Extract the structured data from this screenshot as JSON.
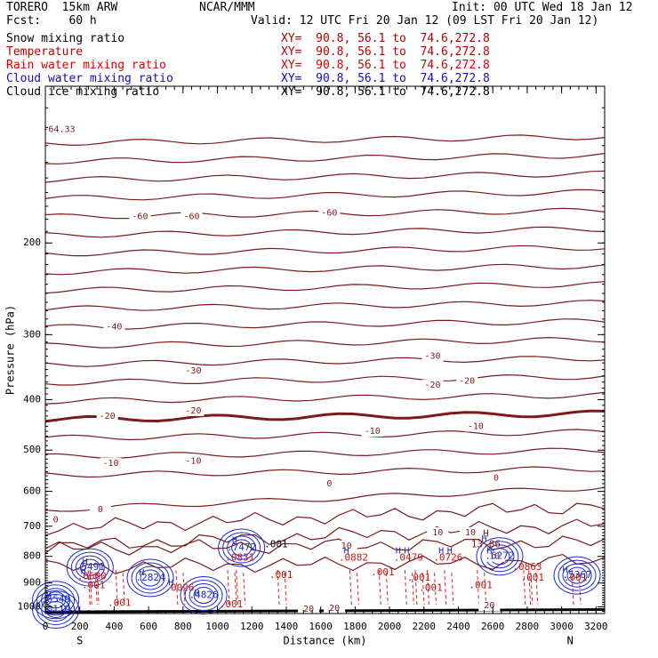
{
  "header": {
    "model": "TORERO  15km ARW",
    "center": "NCAR/MMM",
    "init": "Init: 00 UTC Wed 18 Jan 12",
    "fcst": "Fcst:    60 h",
    "valid": "Valid: 12 UTC Fri 20 Jan 12 (09 LST Fri 20 Jan 12)"
  },
  "legend": [
    {
      "name": "Snow mixing ratio",
      "xy": "XY=  90.8, 56.1 to  74.6,272.8",
      "color": "#000000",
      "xy_color": "#b00000"
    },
    {
      "name": "Temperature",
      "xy": "XY=  90.8, 56.1 to  74.6,272.8",
      "color": "#c00000",
      "xy_color": "#c00000"
    },
    {
      "name": "Rain water mixing ratio",
      "xy": "XY=  90.8, 56.1 to  74.6,272.8",
      "color": "#e00000",
      "xy_color": "#e00000"
    },
    {
      "name": "Cloud water mixing ratio",
      "xy": "XY=  90.8, 56.1 to  74.6,272.8",
      "color": "#1010c0",
      "xy_color": "#1010c0"
    },
    {
      "name": "Cloud ice mixing ratio",
      "xy": "XY=  90.8, 56.1 to  74.6,272.8",
      "color": "#000000",
      "xy_color": "#000000"
    }
  ],
  "chart_data": {
    "type": "line",
    "title": "",
    "xlabel": "Distance (km)",
    "ylabel": "Pressure (hPa)",
    "xlim": [
      0,
      3250
    ],
    "ylim": [
      1030,
      100
    ],
    "y_scale": "log",
    "x_ticks": [
      0,
      200,
      400,
      600,
      800,
      1000,
      1200,
      1400,
      1600,
      1800,
      2000,
      2200,
      2400,
      2600,
      2800,
      3000,
      3200
    ],
    "y_ticks": [
      200,
      300,
      400,
      500,
      600,
      700,
      800,
      900,
      1000
    ],
    "x_end_labels": {
      "left": "S",
      "right": "N"
    },
    "temperature_isotherms": [
      {
        "label": "-64.33",
        "x": [
          80
        ],
        "p": [
          121
        ]
      },
      {
        "label": "-60",
        "x": [
          550,
          850,
          1650
        ],
        "p": [
          178,
          178,
          175
        ]
      },
      {
        "label": "-40",
        "x": [
          400
        ],
        "p": [
          290
        ]
      },
      {
        "label": "-30",
        "x": [
          860,
          2250
        ],
        "p": [
          352,
          330
        ]
      },
      {
        "label": "-20",
        "x": [
          360,
          860,
          2250,
          2450
        ],
        "p": [
          430,
          420,
          375,
          368
        ]
      },
      {
        "label": "-10",
        "x": [
          380,
          860,
          1900,
          2500
        ],
        "p": [
          530,
          525,
          460,
          450
        ]
      },
      {
        "label": "0",
        "x": [
          60,
          320,
          1650,
          2620
        ],
        "p": [
          680,
          650,
          580,
          565
        ]
      },
      {
        "label": "10",
        "x": [
          1750,
          2280,
          2470,
          2610
        ],
        "p": [
          764,
          720,
          720,
          800
        ]
      },
      {
        "label": "20",
        "x": [
          1530,
          1680,
          2580
        ],
        "p": [
          1010,
          1005,
          995
        ]
      }
    ],
    "snow_maxima": [
      {
        "label": "13.86",
        "x": 2560,
        "p": 760
      }
    ],
    "rain_labels": [
      {
        "label": ".001",
        "x": 280,
        "p": 910
      },
      {
        "label": ".001",
        "x": 430,
        "p": 985
      },
      {
        "label": ".0026",
        "x": 780,
        "p": 920
      },
      {
        "label": ".001",
        "x": 1080,
        "p": 990
      },
      {
        "label": ".001",
        "x": 1370,
        "p": 870
      },
      {
        "label": ".001",
        "x": 1960,
        "p": 860
      },
      {
        "label": ".001",
        "x": 2170,
        "p": 880
      },
      {
        "label": ".001",
        "x": 2240,
        "p": 920
      },
      {
        "label": ".001",
        "x": 2530,
        "p": 910
      },
      {
        "label": ".001",
        "x": 2830,
        "p": 880
      },
      {
        "label": ".001",
        "x": 3080,
        "p": 880
      },
      {
        "label": ".0680",
        "x": 270,
        "p": 875
      },
      {
        "label": ".0831",
        "x": 1130,
        "p": 805
      },
      {
        "label": ".0882",
        "x": 1790,
        "p": 805
      },
      {
        "label": ".0479",
        "x": 2110,
        "p": 805
      },
      {
        "label": ".0726",
        "x": 2340,
        "p": 805
      },
      {
        "label": ".0863",
        "x": 2800,
        "p": 840
      }
    ],
    "cloud_water_maxima": [
      {
        "label": ".5491",
        "x": 260,
        "p": 840
      },
      {
        "label": ".2824",
        "x": 610,
        "p": 880
      },
      {
        "label": ".4826",
        "x": 920,
        "p": 950
      },
      {
        "label": ".6549",
        "x": 60,
        "p": 970
      },
      {
        "label": ".7472",
        "x": 1140,
        "p": 770
      },
      {
        "label": ".6272",
        "x": 2640,
        "p": 800
      },
      {
        "label": ".5367",
        "x": 3090,
        "p": 870
      },
      {
        "label": ".0119",
        "x": 60,
        "p": 1012
      }
    ],
    "high_markers": [
      {
        "x": 230,
        "p": 820
      },
      {
        "x": 560,
        "p": 860
      },
      {
        "x": 730,
        "p": 900
      },
      {
        "x": 880,
        "p": 940
      },
      {
        "x": 20,
        "p": 950
      },
      {
        "x": 1100,
        "p": 745
      },
      {
        "x": 1750,
        "p": 780
      },
      {
        "x": 2050,
        "p": 780
      },
      {
        "x": 2100,
        "p": 780
      },
      {
        "x": 2300,
        "p": 780
      },
      {
        "x": 2350,
        "p": 780
      },
      {
        "x": 2580,
        "p": 780
      },
      {
        "x": 2550,
        "p": 740
      },
      {
        "x": 3020,
        "p": 850
      },
      {
        "x": 220,
        "p": 855
      }
    ],
    "ice_label": {
      "label": ".001",
      "x": 1340,
      "p": 760
    },
    "grid": false
  }
}
